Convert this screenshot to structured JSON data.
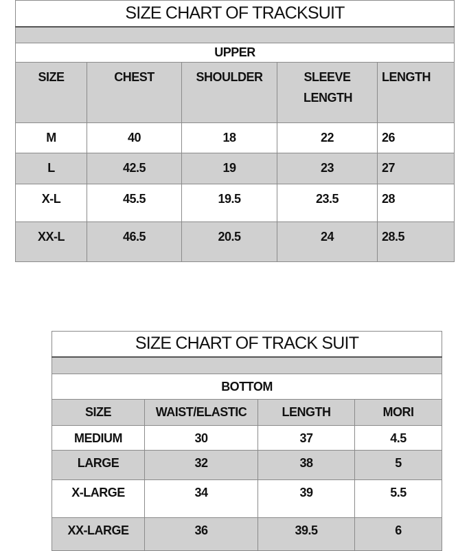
{
  "upper": {
    "title": "SIZE CHART OF TRACKSUIT",
    "section": "UPPER",
    "headers": [
      "SIZE",
      "CHEST",
      "SHOULDER",
      "SLEEVE LENGTH",
      "LENGTH"
    ],
    "rows": [
      [
        "M",
        "40",
        "18",
        "22",
        "26"
      ],
      [
        "L",
        "42.5",
        "19",
        "23",
        "27"
      ],
      [
        "X-L",
        "45.5",
        "19.5",
        "23.5",
        "28"
      ],
      [
        "XX-L",
        "46.5",
        "20.5",
        "24",
        "28.5"
      ]
    ]
  },
  "bottom": {
    "title": "SIZE CHART OF TRACK SUIT",
    "section": "BOTTOM",
    "headers": [
      "SIZE",
      "WAIST/ELASTIC",
      "LENGTH",
      "MORI"
    ],
    "rows": [
      [
        "MEDIUM",
        "30",
        "37",
        "4.5"
      ],
      [
        "LARGE",
        "32",
        "38",
        "5"
      ],
      [
        "X-LARGE",
        "34",
        "39",
        "5.5"
      ],
      [
        "XX-LARGE",
        "36",
        "39.5",
        "6"
      ]
    ]
  }
}
